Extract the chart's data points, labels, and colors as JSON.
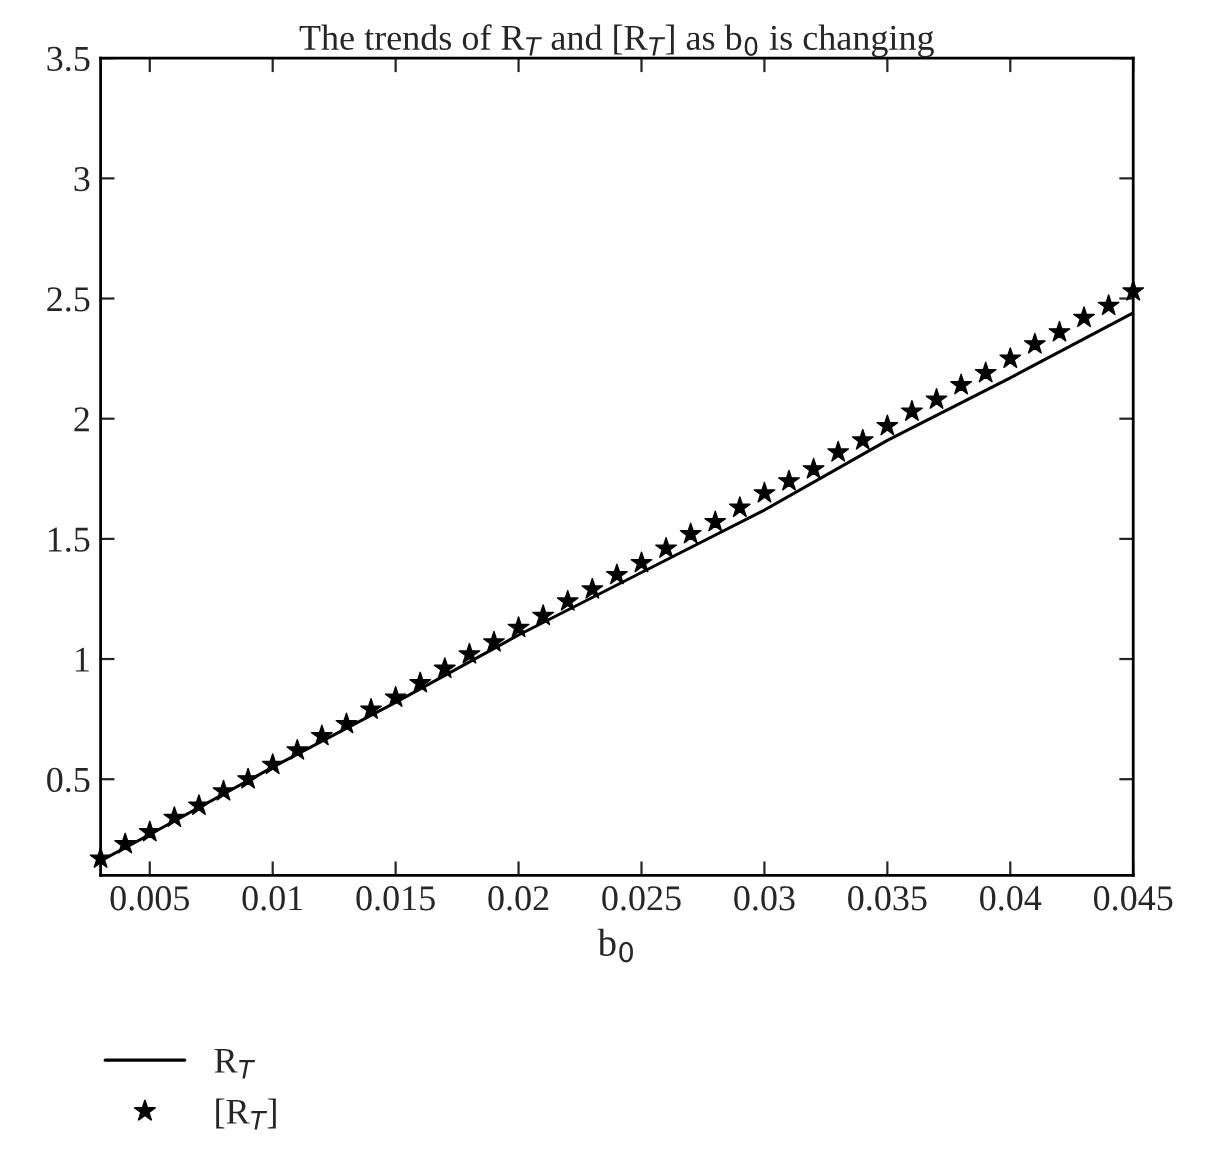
{
  "chart_data": {
    "type": "line",
    "title": "The trends of R$_{T}$ and [R$_{T}$] as b$_{0}$ is changing",
    "xlabel": "b$_{0}$",
    "series": [
      {
        "name": "R$_{T}$",
        "color": "#000000",
        "marker": "none",
        "line_style": "solid",
        "x": [
          0.003,
          0.005,
          0.01,
          0.015,
          0.02,
          0.025,
          0.03,
          0.035,
          0.04,
          0.045
        ],
        "values": [
          0.16,
          0.27,
          0.55,
          0.82,
          1.1,
          1.36,
          1.62,
          1.91,
          2.17,
          2.44
        ]
      },
      {
        "name": "[R$_{T}$]",
        "color": "#000000",
        "type": "scatter",
        "marker": "star",
        "x": [
          0.003,
          0.004,
          0.005,
          0.006,
          0.007,
          0.008,
          0.009,
          0.01,
          0.011,
          0.012,
          0.013,
          0.014,
          0.015,
          0.016,
          0.017,
          0.018,
          0.019,
          0.02,
          0.021,
          0.022,
          0.023,
          0.024,
          0.025,
          0.026,
          0.027,
          0.028,
          0.029,
          0.03,
          0.031,
          0.032,
          0.033,
          0.034,
          0.035,
          0.036,
          0.037,
          0.038,
          0.039,
          0.04,
          0.041,
          0.042,
          0.043,
          0.044,
          0.045
        ],
        "values": [
          0.17,
          0.23,
          0.28,
          0.34,
          0.39,
          0.45,
          0.5,
          0.56,
          0.62,
          0.68,
          0.73,
          0.79,
          0.84,
          0.9,
          0.96,
          1.02,
          1.07,
          1.13,
          1.18,
          1.24,
          1.29,
          1.35,
          1.4,
          1.46,
          1.52,
          1.57,
          1.63,
          1.69,
          1.74,
          1.79,
          1.86,
          1.91,
          1.97,
          2.03,
          2.08,
          2.14,
          2.19,
          2.25,
          2.31,
          2.36,
          2.42,
          2.47,
          2.53
        ]
      }
    ],
    "xlim": [
      0.003,
      0.045
    ],
    "ylim": [
      0.1,
      3.5
    ],
    "xticks": [
      0.005,
      0.01,
      0.015,
      0.02,
      0.025,
      0.03,
      0.035,
      0.04,
      0.045
    ],
    "yticks": [
      0.5,
      1,
      1.5,
      2,
      2.5,
      3,
      3.5
    ],
    "grid": false,
    "legend": "bottom left"
  }
}
